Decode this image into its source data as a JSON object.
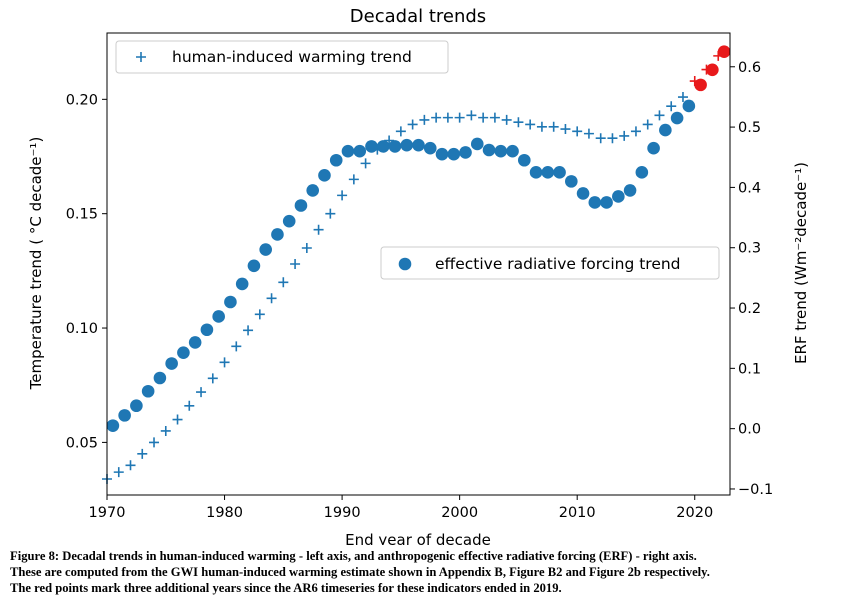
{
  "chart_data": {
    "type": "scatter",
    "title": "Decadal trends",
    "xlabel": "End year of decade",
    "ylabel_left": "Temperature trend ( °C decade⁻¹)",
    "ylabel_right": "ERF trend (Wm⁻²decade⁻¹)",
    "xlim": [
      1970,
      2023
    ],
    "ylim_left": [
      0.027,
      0.229
    ],
    "ylim_right": [
      -0.11,
      0.656
    ],
    "xticks": [
      "1970",
      "1980",
      "1990",
      "2000",
      "2010",
      "2020"
    ],
    "yticks_left": [
      "0.05",
      "0.10",
      "0.15",
      "0.20"
    ],
    "yticks_right": [
      "−0.1",
      "0.0",
      "0.1",
      "0.2",
      "0.3",
      "0.4",
      "0.5",
      "0.6"
    ],
    "colors": {
      "main": "#1f77b4",
      "highlight": "#e8191b"
    },
    "legend": {
      "upper": {
        "label": "human-induced warming trend",
        "position": "upper-left"
      },
      "lower": {
        "label": "effective radiative forcing trend",
        "position": "center-right"
      }
    },
    "series": [
      {
        "name": "human-induced warming trend",
        "axis": "left",
        "marker": "plus",
        "x": [
          1970,
          1971,
          1972,
          1973,
          1974,
          1975,
          1976,
          1977,
          1978,
          1979,
          1980,
          1981,
          1982,
          1983,
          1984,
          1985,
          1986,
          1987,
          1988,
          1989,
          1990,
          1991,
          1992,
          1993,
          1994,
          1995,
          1996,
          1997,
          1998,
          1999,
          2000,
          2001,
          2002,
          2003,
          2004,
          2005,
          2006,
          2007,
          2008,
          2009,
          2010,
          2011,
          2012,
          2013,
          2014,
          2015,
          2016,
          2017,
          2018,
          2019
        ],
        "y": [
          0.034,
          0.037,
          0.04,
          0.045,
          0.05,
          0.055,
          0.06,
          0.066,
          0.072,
          0.078,
          0.085,
          0.092,
          0.099,
          0.106,
          0.113,
          0.12,
          0.128,
          0.135,
          0.143,
          0.15,
          0.158,
          0.165,
          0.172,
          0.178,
          0.182,
          0.186,
          0.189,
          0.191,
          0.192,
          0.192,
          0.192,
          0.193,
          0.192,
          0.192,
          0.191,
          0.19,
          0.189,
          0.188,
          0.188,
          0.187,
          0.186,
          0.185,
          0.183,
          0.183,
          0.184,
          0.186,
          0.189,
          0.193,
          0.197,
          0.201
        ]
      },
      {
        "name": "",
        "axis": "left",
        "marker": "plus",
        "highlight": true,
        "x": [
          2020,
          2021,
          2022
        ],
        "y": [
          0.208,
          0.213,
          0.219
        ]
      },
      {
        "name": "effective radiative forcing trend",
        "axis": "right",
        "marker": "circle",
        "x": [
          1970.5,
          1971.5,
          1972.5,
          1973.5,
          1974.5,
          1975.5,
          1976.5,
          1977.5,
          1978.5,
          1979.5,
          1980.5,
          1981.5,
          1982.5,
          1983.5,
          1984.5,
          1985.5,
          1986.5,
          1987.5,
          1988.5,
          1989.5,
          1990.5,
          1991.5,
          1992.5,
          1993.5,
          1994.5,
          1995.5,
          1996.5,
          1997.5,
          1998.5,
          1999.5,
          2000.5,
          2001.5,
          2002.5,
          2003.5,
          2004.5,
          2005.5,
          2006.5,
          2007.5,
          2008.5,
          2009.5,
          2010.5,
          2011.5,
          2012.5,
          2013.5,
          2014.5,
          2015.5,
          2016.5,
          2017.5,
          2018.5,
          2019.5
        ],
        "y": [
          0.005,
          0.022,
          0.038,
          0.062,
          0.084,
          0.108,
          0.126,
          0.143,
          0.164,
          0.186,
          0.21,
          0.24,
          0.27,
          0.297,
          0.322,
          0.344,
          0.37,
          0.395,
          0.42,
          0.445,
          0.46,
          0.46,
          0.468,
          0.468,
          0.468,
          0.47,
          0.47,
          0.465,
          0.455,
          0.455,
          0.458,
          0.472,
          0.462,
          0.46,
          0.46,
          0.445,
          0.425,
          0.425,
          0.425,
          0.41,
          0.39,
          0.375,
          0.375,
          0.385,
          0.395,
          0.425,
          0.465,
          0.495,
          0.515,
          0.535
        ]
      },
      {
        "name": "",
        "axis": "right",
        "marker": "circle",
        "highlight": true,
        "x": [
          2020.5,
          2021.5,
          2022.5
        ],
        "y": [
          0.57,
          0.595,
          0.625
        ]
      }
    ]
  },
  "caption": {
    "line1": "Figure 8: Decadal trends in human-induced warming - left axis, and anthropogenic effective radiative forcing (ERF) - right axis.",
    "line2": "These are computed from the GWI human-induced warming estimate shown in Appendix B, Figure B2 and Figure 2b respectively.",
    "line3": "The red points mark three additional years since the AR6 timeseries for these indicators ended in 2019."
  }
}
